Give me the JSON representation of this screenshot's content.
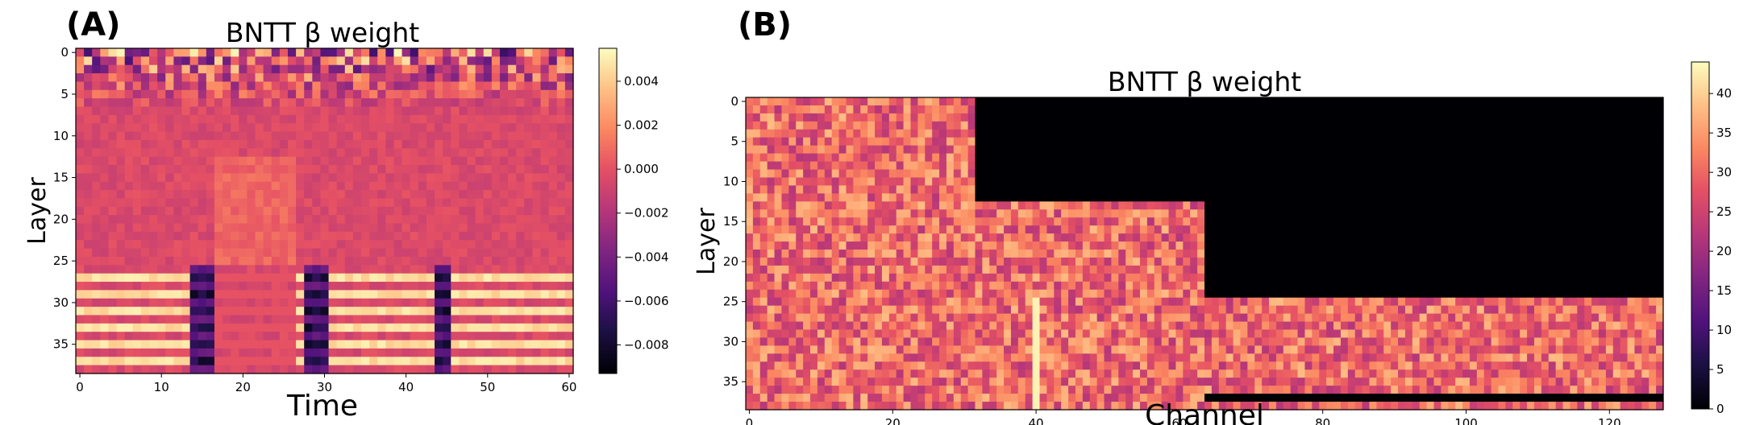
{
  "chart_data": [
    {
      "type": "heatmap",
      "panel_label": "(A)",
      "title": "BNTT β weight",
      "xlabel": "Time",
      "ylabel": "Layer",
      "colormap": "magma",
      "rows": 39,
      "cols": 61,
      "x_range": [
        0,
        60
      ],
      "y_range": [
        0,
        38
      ],
      "x_ticks": [
        "0",
        "10",
        "20",
        "30",
        "40",
        "50",
        "60"
      ],
      "y_ticks": [
        "0",
        "5",
        "10",
        "15",
        "20",
        "25",
        "30",
        "35"
      ],
      "colorbar": {
        "range": [
          -0.0093,
          0.0055
        ],
        "ticks": [
          "0.004",
          "0.002",
          "0.000",
          "−0.002",
          "−0.004",
          "−0.006",
          "−0.008"
        ],
        "tick_values": [
          0.004,
          0.002,
          0.0,
          -0.002,
          -0.004,
          -0.006,
          -0.008
        ]
      },
      "approx_pattern": {
        "background_value": -0.0005,
        "high_stripe_rows": [
          27,
          29,
          31,
          33,
          35,
          37
        ],
        "high_stripe_value": 0.0045,
        "dark_columns": [
          14,
          15,
          16,
          28,
          29,
          30,
          44,
          45
        ],
        "dark_value": -0.0085,
        "top_rows_noisy": [
          0,
          1,
          2,
          3,
          4,
          5,
          6,
          7
        ]
      }
    },
    {
      "type": "heatmap",
      "panel_label": "(B)",
      "title": "BNTT β weight",
      "xlabel": "Channel",
      "ylabel": "Layer",
      "colormap": "magma",
      "rows": 39,
      "cols": 128,
      "x_range": [
        0,
        127
      ],
      "y_range": [
        0,
        38
      ],
      "x_ticks": [
        "0",
        "20",
        "40",
        "60",
        "80",
        "100",
        "120"
      ],
      "y_ticks": [
        "0",
        "5",
        "10",
        "15",
        "20",
        "25",
        "30",
        "35"
      ],
      "colorbar": {
        "range": [
          0,
          44
        ],
        "ticks": [
          "40",
          "35",
          "30",
          "25",
          "20",
          "15",
          "10",
          "5",
          "0"
        ],
        "tick_values": [
          40,
          35,
          30,
          25,
          20,
          15,
          10,
          5,
          0
        ]
      },
      "approx_pattern": {
        "background_value": 30,
        "zero_regions": [
          {
            "rows": [
              0,
              12
            ],
            "cols": [
              32,
              127
            ]
          },
          {
            "rows": [
              13,
              24
            ],
            "cols": [
              64,
              127
            ]
          },
          {
            "rows": [
              37,
              37
            ],
            "cols": [
              64,
              127
            ]
          }
        ],
        "bright_columns": [
          40
        ],
        "bright_value": 43
      }
    }
  ]
}
